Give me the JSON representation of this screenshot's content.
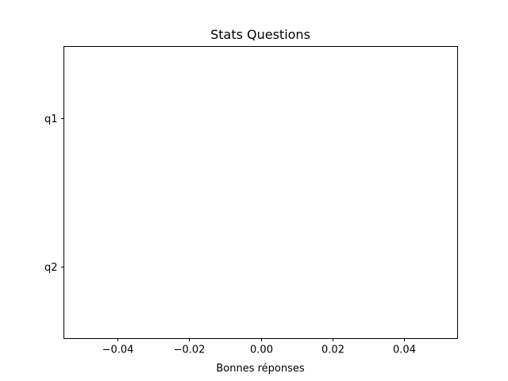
{
  "chart_data": {
    "type": "bar",
    "orientation": "horizontal",
    "title": "Stats Questions",
    "xlabel": "Bonnes réponses",
    "ylabel": "",
    "categories": [
      "q1",
      "q2"
    ],
    "values": [
      0,
      0
    ],
    "xlim": [
      -0.055,
      0.055
    ],
    "xticks": [
      -0.04,
      -0.02,
      0.0,
      0.02,
      0.04
    ],
    "xtick_labels": [
      "−0.04",
      "−0.02",
      "0.00",
      "0.02",
      "0.04"
    ],
    "grid": false,
    "legend": "none"
  }
}
